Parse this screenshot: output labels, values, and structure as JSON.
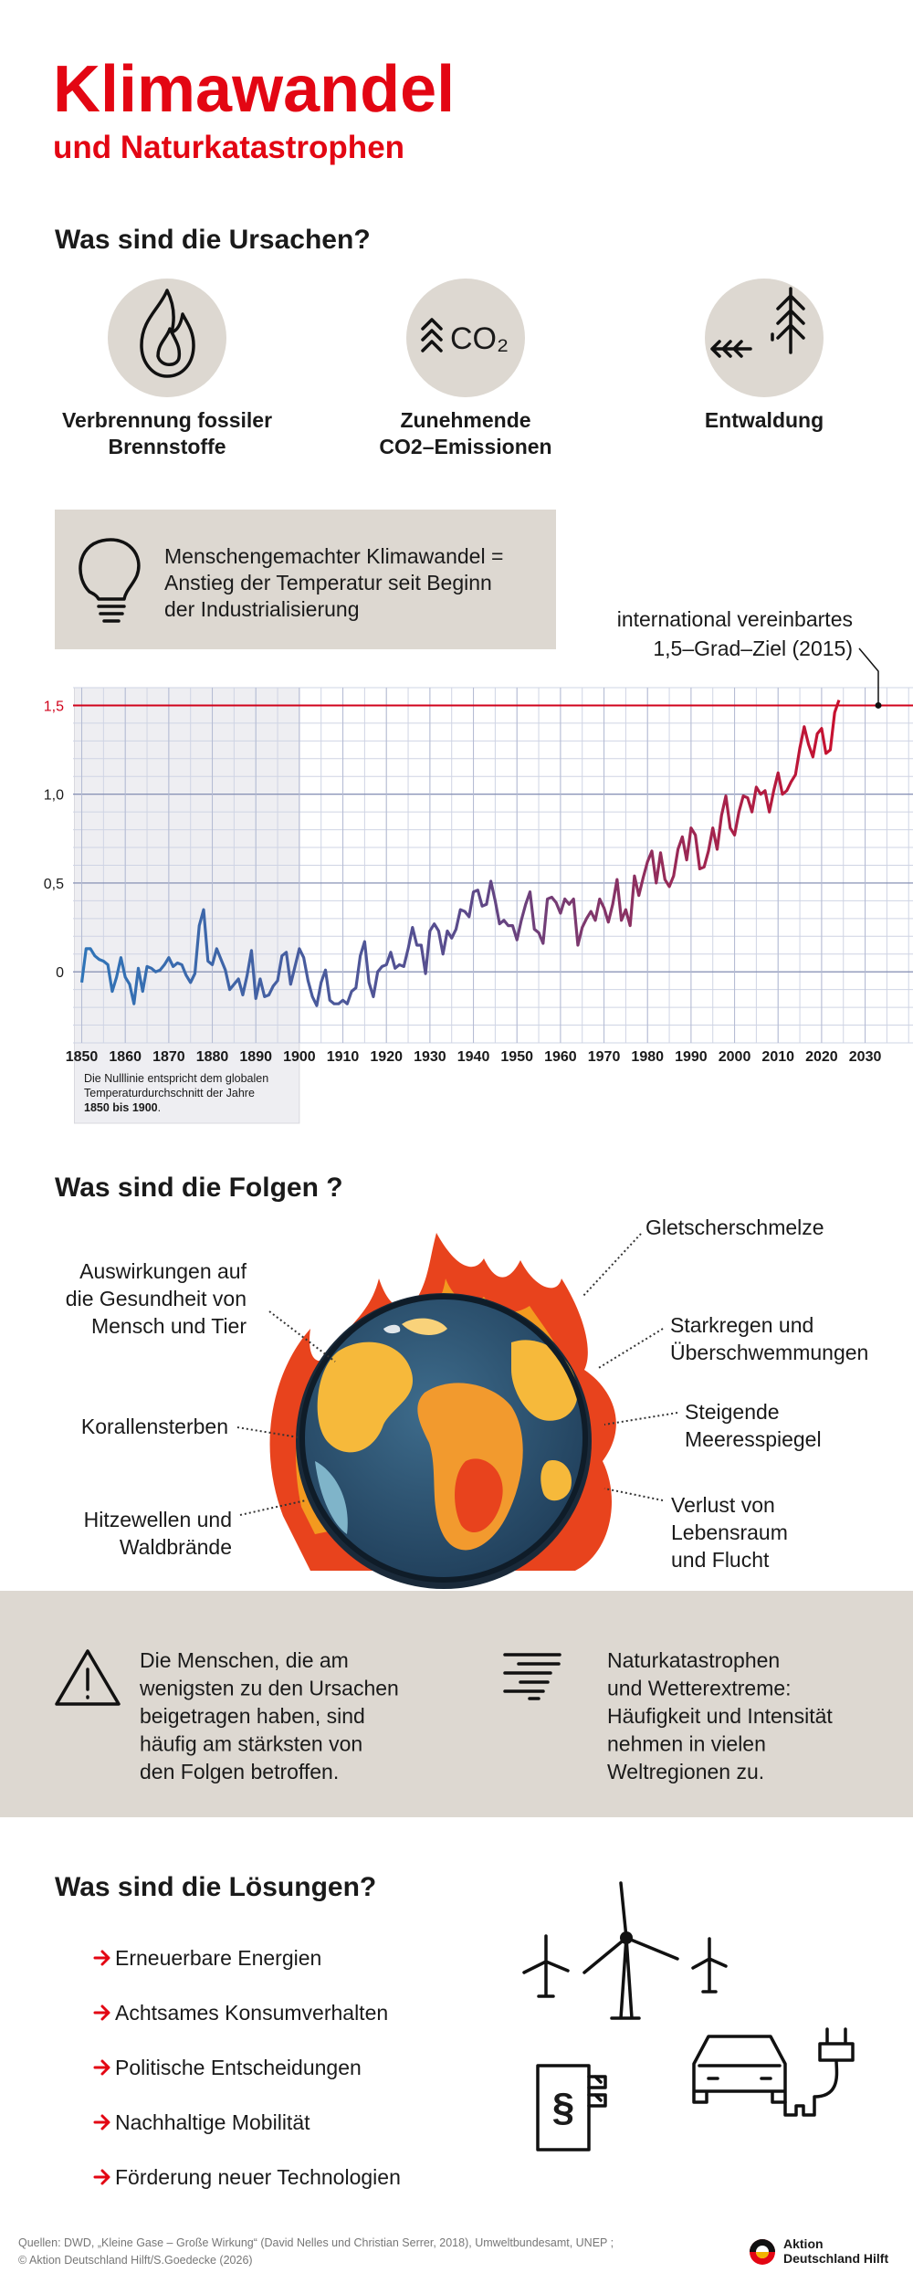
{
  "header": {
    "title": "Klimawandel",
    "subtitle": "und Naturkatastrophen"
  },
  "causes": {
    "heading": "Was sind die Ursachen?",
    "items": [
      {
        "label": [
          "Verbrennung fossiler",
          "Brennstoffe"
        ]
      },
      {
        "label": [
          "Zunehmende",
          "CO2–Emissionen"
        ],
        "icon_text": "CO₂"
      },
      {
        "label": [
          "Entwaldung"
        ]
      }
    ]
  },
  "info_box": {
    "lines": [
      "Menschengemachter Klimawandel =",
      "Anstieg der Temperatur seit Beginn",
      "der Industrialisierung"
    ]
  },
  "chart_data": {
    "type": "line",
    "x": [
      1850,
      1851,
      1852,
      1853,
      1854,
      1855,
      1856,
      1857,
      1858,
      1859,
      1860,
      1861,
      1862,
      1863,
      1864,
      1865,
      1866,
      1867,
      1868,
      1869,
      1870,
      1871,
      1872,
      1873,
      1874,
      1875,
      1876,
      1877,
      1878,
      1879,
      1880,
      1881,
      1882,
      1883,
      1884,
      1885,
      1886,
      1887,
      1888,
      1889,
      1890,
      1891,
      1892,
      1893,
      1894,
      1895,
      1896,
      1897,
      1898,
      1899,
      1900,
      1901,
      1902,
      1903,
      1904,
      1905,
      1906,
      1907,
      1908,
      1909,
      1910,
      1911,
      1912,
      1913,
      1914,
      1915,
      1916,
      1917,
      1918,
      1919,
      1920,
      1921,
      1922,
      1923,
      1924,
      1925,
      1926,
      1927,
      1928,
      1929,
      1930,
      1931,
      1932,
      1933,
      1934,
      1935,
      1936,
      1937,
      1938,
      1939,
      1940,
      1941,
      1942,
      1943,
      1944,
      1945,
      1946,
      1947,
      1948,
      1949,
      1950,
      1951,
      1952,
      1953,
      1954,
      1955,
      1956,
      1957,
      1958,
      1959,
      1960,
      1961,
      1962,
      1963,
      1964,
      1965,
      1966,
      1967,
      1968,
      1969,
      1970,
      1971,
      1972,
      1973,
      1974,
      1975,
      1976,
      1977,
      1978,
      1979,
      1980,
      1981,
      1982,
      1983,
      1984,
      1985,
      1986,
      1987,
      1988,
      1989,
      1990,
      1991,
      1992,
      1993,
      1994,
      1995,
      1996,
      1997,
      1998,
      1999,
      2000,
      2001,
      2002,
      2003,
      2004,
      2005,
      2006,
      2007,
      2008,
      2009,
      2010,
      2011,
      2012,
      2013,
      2014,
      2015,
      2016,
      2017,
      2018,
      2019,
      2020,
      2021,
      2022,
      2023,
      2024
    ],
    "values": [
      -0.06,
      0.13,
      0.13,
      0.09,
      0.07,
      0.06,
      0.04,
      -0.11,
      -0.03,
      0.08,
      -0.03,
      -0.07,
      -0.18,
      0.02,
      -0.11,
      0.03,
      0.02,
      0.0,
      0.01,
      0.04,
      0.08,
      0.03,
      0.05,
      0.04,
      -0.02,
      -0.06,
      -0.01,
      0.26,
      0.35,
      0.06,
      0.04,
      0.13,
      0.07,
      0.01,
      -0.1,
      -0.07,
      -0.04,
      -0.13,
      -0.02,
      0.12,
      -0.15,
      -0.04,
      -0.14,
      -0.13,
      -0.08,
      -0.05,
      0.09,
      0.11,
      -0.07,
      0.03,
      0.13,
      0.08,
      -0.05,
      -0.14,
      -0.19,
      -0.06,
      0.01,
      -0.16,
      -0.18,
      -0.18,
      -0.16,
      -0.18,
      -0.11,
      -0.09,
      0.09,
      0.17,
      -0.06,
      -0.14,
      0.0,
      0.03,
      0.04,
      0.11,
      0.02,
      0.04,
      0.03,
      0.13,
      0.25,
      0.15,
      0.15,
      -0.01,
      0.23,
      0.27,
      0.23,
      0.1,
      0.23,
      0.19,
      0.24,
      0.35,
      0.34,
      0.31,
      0.45,
      0.46,
      0.37,
      0.38,
      0.51,
      0.4,
      0.27,
      0.29,
      0.26,
      0.26,
      0.18,
      0.29,
      0.38,
      0.45,
      0.24,
      0.22,
      0.16,
      0.41,
      0.42,
      0.39,
      0.33,
      0.41,
      0.38,
      0.41,
      0.15,
      0.25,
      0.3,
      0.34,
      0.29,
      0.41,
      0.36,
      0.28,
      0.38,
      0.52,
      0.29,
      0.35,
      0.26,
      0.54,
      0.43,
      0.53,
      0.62,
      0.68,
      0.5,
      0.67,
      0.52,
      0.48,
      0.54,
      0.69,
      0.76,
      0.63,
      0.81,
      0.77,
      0.58,
      0.59,
      0.68,
      0.81,
      0.69,
      0.88,
      0.99,
      0.81,
      0.77,
      0.9,
      0.99,
      0.98,
      0.9,
      1.04,
      1.0,
      1.02,
      0.9,
      1.02,
      1.12,
      1.0,
      1.02,
      1.07,
      1.11,
      1.26,
      1.38,
      1.28,
      1.21,
      1.34,
      1.37,
      1.23,
      1.25,
      1.46,
      1.53
    ],
    "gradient_colors": [
      "#2f74b8",
      "#5a4b8c",
      "#c8102e"
    ],
    "xlim": [
      1848,
      2041
    ],
    "ylim": [
      -0.4,
      1.6
    ],
    "xticks": [
      1850,
      1860,
      1870,
      1880,
      1890,
      1900,
      1910,
      1920,
      1930,
      1940,
      1950,
      1960,
      1970,
      1980,
      1990,
      2000,
      2010,
      2020,
      2030
    ],
    "yticks": [
      0,
      {
        "value": 0.5,
        "label": "0,5"
      },
      {
        "value": 1,
        "label": "1,0"
      },
      {
        "value": 1.5,
        "label": "1,5"
      }
    ],
    "grid": true,
    "minor_grid": {
      "x": 5,
      "y": 0.1
    },
    "reference_line": {
      "value": 1.5,
      "color": "#d0021b",
      "label": [
        "international vereinbartes",
        "1,5–Grad–Ziel (2015)"
      ]
    },
    "baseline_span": [
      1850,
      1900
    ],
    "note": {
      "lines": [
        "Die Nulllinie entspricht dem globalen",
        "Temperaturdurchschnitt der Jahre"
      ],
      "bold": "1850 bis 1900",
      "end": "."
    }
  },
  "consequences": {
    "heading": "Was sind die Folgen ?",
    "labels": [
      {
        "lines": [
          "Gletscherschmelze"
        ]
      },
      {
        "lines": [
          "Auswirkungen auf",
          "die Gesundheit von",
          "Mensch und Tier"
        ]
      },
      {
        "lines": [
          "Korallensterben"
        ]
      },
      {
        "lines": [
          "Hitzewellen und",
          "Waldbrände"
        ]
      },
      {
        "lines": [
          "Starkregen und",
          "Überschwemmungen"
        ]
      },
      {
        "lines": [
          "Steigende",
          "Meeresspiegel"
        ]
      },
      {
        "lines": [
          "Verlust von",
          "Lebensraum",
          "und Flucht"
        ]
      }
    ]
  },
  "impact": {
    "left": [
      "Die Menschen, die am",
      "wenigsten zu den Ursachen",
      "beigetragen haben, sind",
      "häufig am stärksten von",
      "den Folgen betroffen."
    ],
    "right": [
      "Naturkatastrophen",
      "und Wetterextreme:",
      "Häufigkeit und Intensität",
      "nehmen in vielen",
      "Weltregionen zu."
    ]
  },
  "solutions": {
    "heading": "Was sind die Lösungen?",
    "items": [
      "Erneuerbare Energien",
      "Achtsames Konsumverhalten",
      "Politische Entscheidungen",
      "Nachhaltige Mobilität",
      "Förderung neuer Technologien"
    ],
    "law_icon": "§"
  },
  "footer": {
    "sources": [
      "Quellen: DWD, „Kleine Gase – Große Wirkung“ (David Nelles und Christian Serrer, 2018), Umweltbundesamt, UNEP ;",
      "© Aktion Deutschland Hilft/S.Goedecke (2026)"
    ],
    "logo": [
      "Aktion",
      "Deutschland Hilft"
    ]
  }
}
